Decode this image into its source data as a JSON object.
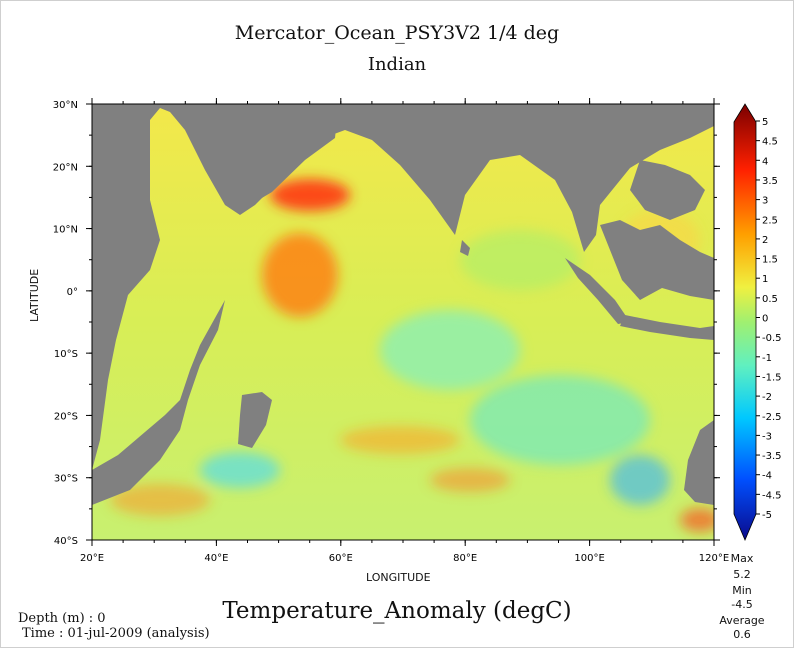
{
  "header": {
    "title": "Mercator_Ocean_PSY3V2 1/4 deg",
    "subtitle": "Indian"
  },
  "map": {
    "region": "Indian Ocean",
    "x_axis_label": "LONGITUDE",
    "y_axis_label": "LATITUDE",
    "lon_ticks": [
      "20°E",
      "40°E",
      "60°E",
      "80°E",
      "100°E",
      "120°E"
    ],
    "lat_ticks": [
      "30°N",
      "20°N",
      "10°N",
      "0°",
      "10°S",
      "20°S",
      "30°S",
      "40°S"
    ],
    "lon_range": [
      20,
      120
    ],
    "lat_range": [
      -40,
      30
    ],
    "land_color": "#808080"
  },
  "colorbar": {
    "ticks": [
      "5",
      "4.5",
      "4",
      "3.5",
      "3",
      "2.5",
      "2",
      "1.5",
      "1",
      "0.5",
      "0",
      "-0.5",
      "-1",
      "-1.5",
      "-2",
      "-2.5",
      "-3",
      "-3.5",
      "-4",
      "-4.5",
      "-5"
    ],
    "range": [
      -5,
      5
    ],
    "colors": [
      "#0a0a8c",
      "#0050ff",
      "#00c8ff",
      "#60f0c0",
      "#f0f040",
      "#ffa000",
      "#ff2000",
      "#7a0000"
    ]
  },
  "stats": {
    "max_label": "Max",
    "max_value": "5.2",
    "min_label": "Min",
    "min_value": "-4.5",
    "avg_label": "Average",
    "avg_value": "0.6"
  },
  "footer": {
    "variable_title": "Temperature_Anomaly (degC)",
    "depth": "Depth (m) : 0",
    "time": "Time : 01-jul-2009 (analysis)"
  }
}
